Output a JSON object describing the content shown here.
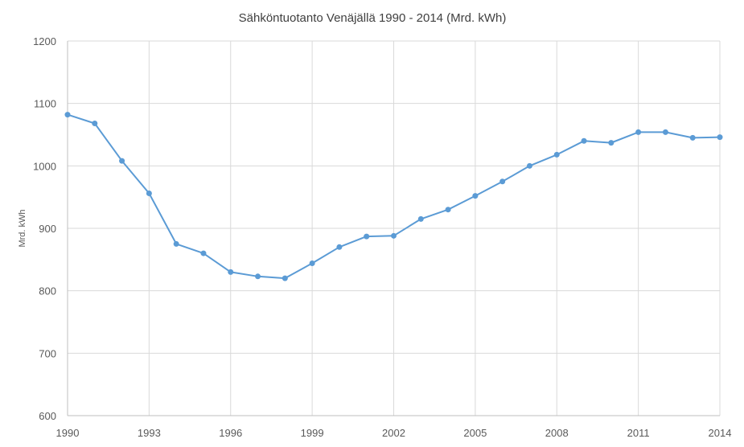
{
  "chart_data": {
    "type": "line",
    "title": "Sähköntuotanto Venäjällä 1990 - 2014 (Mrd. kWh)",
    "xlabel": "",
    "ylabel": "Mrd. kWh",
    "ylim": [
      600,
      1200
    ],
    "yticks": [
      600,
      700,
      800,
      900,
      1000,
      1100,
      1200
    ],
    "xlim": [
      1990,
      2014
    ],
    "xticks": [
      1990,
      1993,
      1996,
      1999,
      2002,
      2005,
      2008,
      2011,
      2014
    ],
    "grid": true,
    "legend": "none",
    "line_color": "#5B9BD5",
    "series": [
      {
        "name": "Sähköntuotanto",
        "x": [
          1990,
          1991,
          1992,
          1993,
          1994,
          1995,
          1996,
          1997,
          1998,
          1999,
          2000,
          2001,
          2002,
          2003,
          2004,
          2005,
          2006,
          2007,
          2008,
          2009,
          2010,
          2011,
          2012,
          2013,
          2014
        ],
        "values": [
          1082,
          1068,
          1008,
          956,
          875,
          860,
          830,
          823,
          820,
          844,
          870,
          887,
          888,
          915,
          930,
          952,
          975,
          1000,
          1018,
          1040,
          1037,
          1054,
          1054,
          1045,
          1046
        ]
      }
    ]
  }
}
